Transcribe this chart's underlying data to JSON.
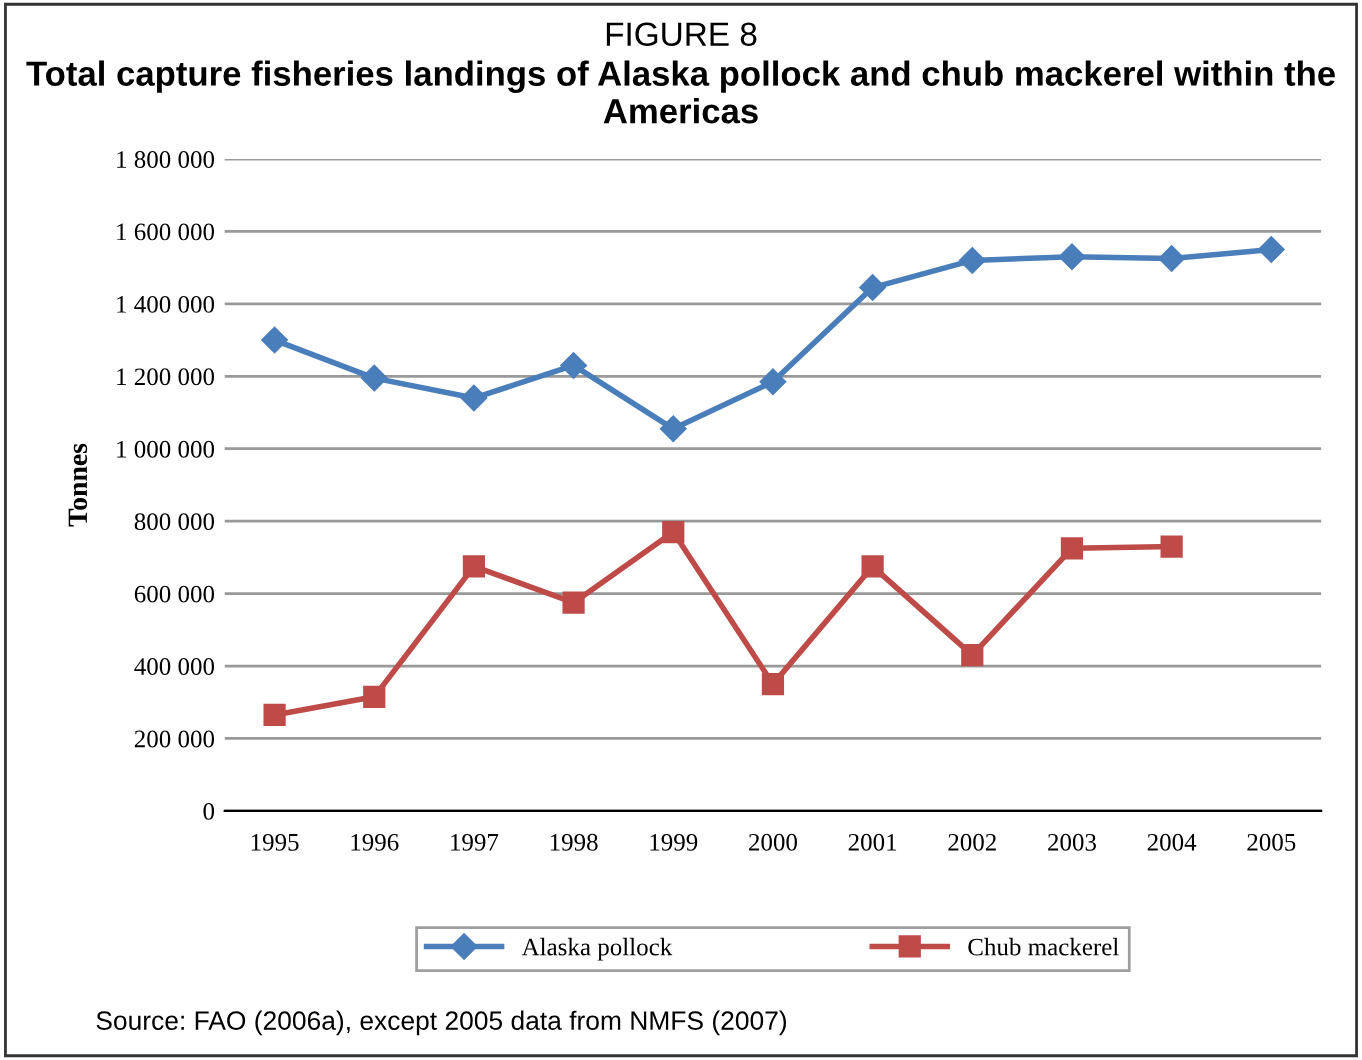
{
  "chart_data": {
    "type": "line",
    "title": "FIGURE 8",
    "subtitle": "Total capture fisheries landings of Alaska pollock and chub mackerel within the Americas",
    "ylabel": "Tonnes",
    "categories": [
      "1995",
      "1996",
      "1997",
      "1998",
      "1999",
      "2000",
      "2001",
      "2002",
      "2003",
      "2004",
      "2005"
    ],
    "series": [
      {
        "name": "Alaska pollock",
        "color": "#4a7ebb",
        "marker": "diamond",
        "values": [
          1300000,
          1195000,
          1140000,
          1230000,
          1055000,
          1185000,
          1445000,
          1520000,
          1530000,
          1525000,
          1550000
        ]
      },
      {
        "name": "Chub mackerel",
        "color": "#be4b48",
        "marker": "square",
        "values": [
          265000,
          315000,
          675000,
          575000,
          770000,
          350000,
          675000,
          430000,
          725000,
          730000,
          null
        ]
      }
    ],
    "ylim": [
      0,
      1800000
    ],
    "yticks": [
      {
        "value": 0,
        "label": "0"
      },
      {
        "value": 200000,
        "label": "200 000"
      },
      {
        "value": 400000,
        "label": "400 000"
      },
      {
        "value": 600000,
        "label": "600 000"
      },
      {
        "value": 800000,
        "label": "800 000"
      },
      {
        "value": 1000000,
        "label": "1 000 000"
      },
      {
        "value": 1200000,
        "label": "1 200 000"
      },
      {
        "value": 1400000,
        "label": "1 400 000"
      },
      {
        "value": 1600000,
        "label": "1 600 000"
      },
      {
        "value": 1800000,
        "label": "1 800 000"
      }
    ],
    "grid": "y",
    "legend": "bottom",
    "line_style": "solid",
    "annotations": [
      "Source: FAO (2006a), except 2005 data from NMFS (2007)"
    ]
  }
}
